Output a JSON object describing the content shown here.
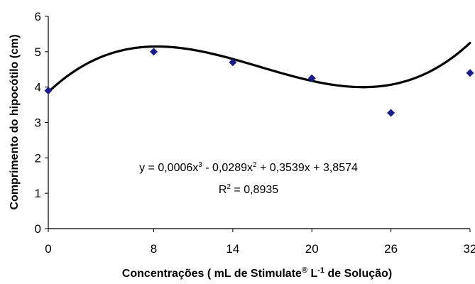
{
  "chart_data": {
    "type": "scatter",
    "ylabel": "Comprimento do hipocótilo (cm)",
    "xlabel_parts": [
      "Concentrações ( mL de Stimulate",
      "®",
      " L",
      "-1",
      " de Solução)"
    ],
    "x_ticks": [
      0,
      8,
      14,
      20,
      26,
      32
    ],
    "y_ticks": [
      0,
      1,
      2,
      3,
      4,
      5,
      6
    ],
    "xlim": [
      0,
      32
    ],
    "ylim": [
      0,
      6
    ],
    "grid": false,
    "points": [
      {
        "x": 0,
        "y": 3.9
      },
      {
        "x": 8,
        "y": 5.0
      },
      {
        "x": 14,
        "y": 4.7
      },
      {
        "x": 20,
        "y": 4.25
      },
      {
        "x": 26,
        "y": 3.27
      },
      {
        "x": 32,
        "y": 4.4
      }
    ],
    "marker_color": "#1c1c8c",
    "trendline": {
      "type": "polynomial",
      "order": 3,
      "coefficients": [
        3.8574,
        0.3539,
        -0.0289,
        0.0006
      ],
      "color": "#000000",
      "equation_parts": [
        "y = 0,0006x",
        "3",
        " - 0,0289x",
        "2",
        " + 0,3539x + 3,8574"
      ],
      "r2_parts": [
        "R",
        "2",
        " = 0,8935"
      ]
    }
  }
}
